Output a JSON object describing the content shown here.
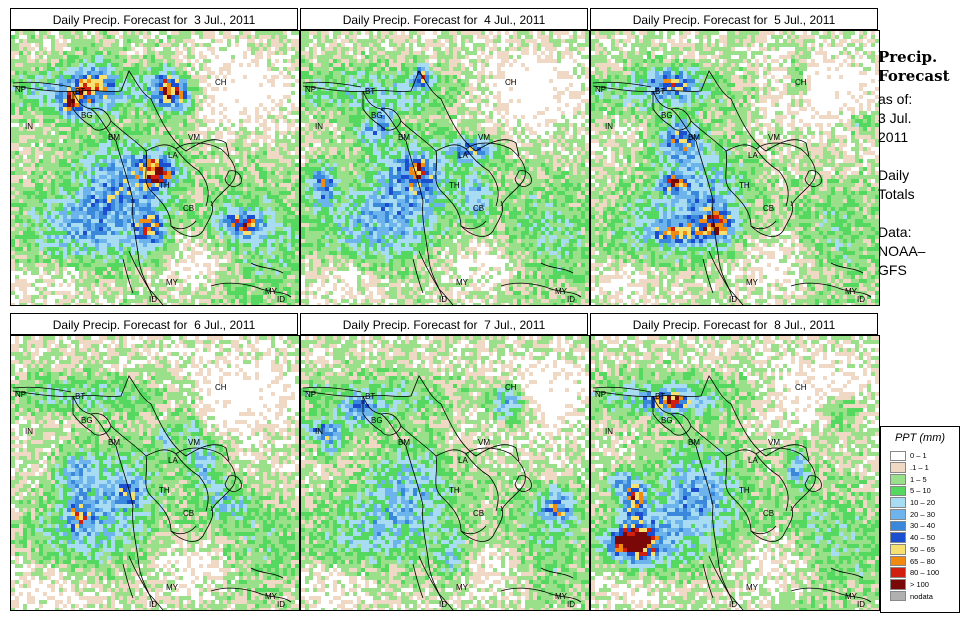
{
  "panels": [
    {
      "title": "Daily Precip. Forecast for  3 Jul., 2011",
      "seed": 11,
      "wet": 1.0
    },
    {
      "title": "Daily Precip. Forecast for  4 Jul., 2011",
      "seed": 27,
      "wet": 0.95
    },
    {
      "title": "Daily Precip. Forecast for  5 Jul., 2011",
      "seed": 43,
      "wet": 0.85
    },
    {
      "title": "Daily Precip. Forecast for  6 Jul., 2011",
      "seed": 59,
      "wet": 0.8
    },
    {
      "title": "Daily Precip. Forecast for  7 Jul., 2011",
      "seed": 71,
      "wet": 0.85
    },
    {
      "title": "Daily Precip. Forecast for  8 Jul., 2011",
      "seed": 89,
      "wet": 0.9
    }
  ],
  "map_labels": [
    "CH",
    "NP",
    "BT",
    "BG",
    "IN",
    "BM",
    "VM",
    "LA",
    "TH",
    "CB",
    "MY",
    "ID",
    "MY",
    "ID"
  ],
  "sidebar": {
    "heading_line1": "Precip.",
    "heading_line2": "Forecast",
    "asof": "as of:\n3 Jul.\n2011",
    "period": "Daily\nTotals",
    "data_source": "Data:\nNOAA–\nGFS"
  },
  "legend": {
    "title": "PPT (mm)",
    "entries": [
      {
        "label": "0 – 1",
        "color": "#ffffff"
      },
      {
        "label": ".1 – 1",
        "color": "#f0d9c4"
      },
      {
        "label": "1 – 5",
        "color": "#9ae08a"
      },
      {
        "label": "5 – 10",
        "color": "#55d860"
      },
      {
        "label": "10 – 20",
        "color": "#a8dcf2"
      },
      {
        "label": "20 – 30",
        "color": "#6db4ec"
      },
      {
        "label": "30 – 40",
        "color": "#3a88dc"
      },
      {
        "label": "40 – 50",
        "color": "#1c4fd0"
      },
      {
        "label": "50 – 65",
        "color": "#f6e070"
      },
      {
        "label": "65 – 80",
        "color": "#f08a10"
      },
      {
        "label": "80 – 100",
        "color": "#d22010"
      },
      {
        "label": "> 100",
        "color": "#7a0808"
      },
      {
        "label": "nodata",
        "color": "#b0b0b0"
      }
    ]
  }
}
